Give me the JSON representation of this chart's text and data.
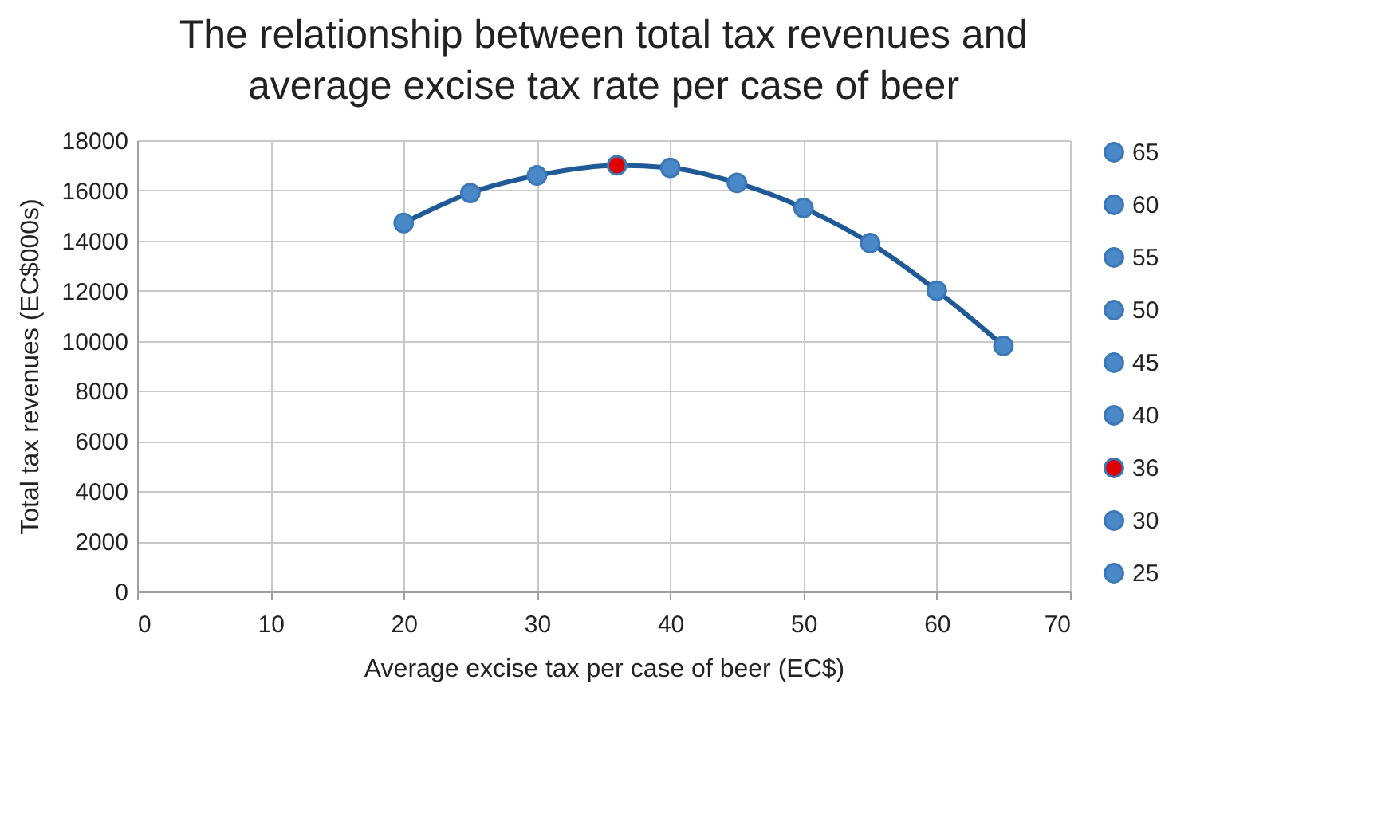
{
  "chart_data": {
    "type": "line",
    "title": "The relationship between total tax revenues and average excise tax rate per case of beer",
    "xlabel": "Average excise tax per case of beer (EC$)",
    "ylabel": "Total tax revenues (EC$000s)",
    "xlim": [
      0,
      70
    ],
    "xticks": [
      0,
      10,
      20,
      30,
      40,
      50,
      60,
      70
    ],
    "ylim": [
      0,
      18000
    ],
    "yticks": [
      0,
      2000,
      4000,
      6000,
      8000,
      10000,
      12000,
      14000,
      16000,
      18000
    ],
    "grid": true,
    "legend": "right",
    "marker": "circle",
    "series": [
      {
        "marker": "none",
        "color": "#1f5a96",
        "x": [
          20,
          25,
          30,
          36,
          40,
          45,
          50,
          55,
          60,
          65
        ],
        "values": [
          14700,
          15900,
          16600,
          17000,
          16900,
          16300,
          15300,
          13900,
          12000,
          9800
        ]
      },
      {
        "type": "scatter",
        "name": "65",
        "color": "#4a88c8",
        "x": [
          65
        ],
        "values": [
          9800
        ]
      },
      {
        "type": "scatter",
        "name": "60",
        "color": "#4a88c8",
        "x": [
          60
        ],
        "values": [
          12000
        ]
      },
      {
        "type": "scatter",
        "name": "55",
        "color": "#4a88c8",
        "x": [
          55
        ],
        "values": [
          13900
        ]
      },
      {
        "type": "scatter",
        "name": "50",
        "color": "#4a88c8",
        "x": [
          50
        ],
        "values": [
          15300
        ]
      },
      {
        "type": "scatter",
        "name": "45",
        "color": "#4a88c8",
        "x": [
          45
        ],
        "values": [
          16300
        ]
      },
      {
        "type": "scatter",
        "name": "40",
        "color": "#4a88c8",
        "x": [
          40
        ],
        "values": [
          16900
        ]
      },
      {
        "type": "scatter",
        "name": "36",
        "color": "#e00000",
        "x": [
          36
        ],
        "values": [
          17000
        ]
      },
      {
        "type": "scatter",
        "name": "30",
        "color": "#4a88c8",
        "x": [
          30
        ],
        "values": [
          16600
        ]
      },
      {
        "type": "scatter",
        "name": "25",
        "color": "#4a88c8",
        "x": [
          25
        ],
        "values": [
          15900
        ]
      },
      {
        "type": "scatter",
        "color": "#4a88c8",
        "x": [
          20
        ],
        "values": [
          14700
        ]
      }
    ]
  }
}
